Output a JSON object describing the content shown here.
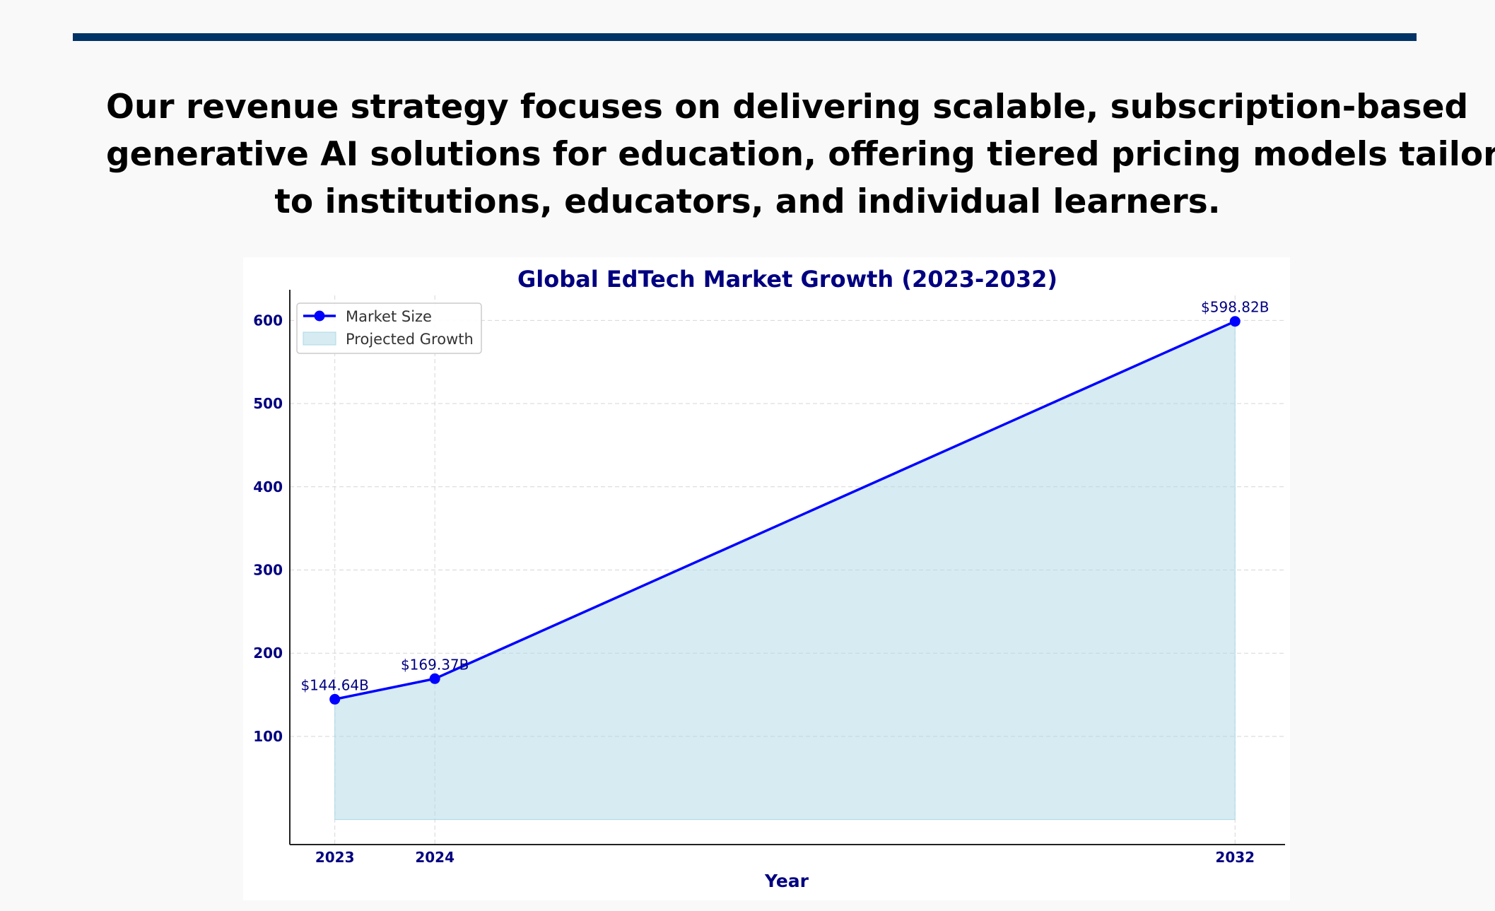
{
  "heading": {
    "line1": "Our revenue strategy focuses on delivering scalable, subscription-based",
    "line2": "generative AI solutions for education, offering tiered pricing models tailored",
    "line3": "to institutions, educators, and individual learners."
  },
  "colors": {
    "top_rule": "#003366",
    "title": "#000080",
    "series_line": "#0000ff",
    "area_fill": "#add8e6"
  },
  "chart_data": {
    "type": "line",
    "title": "Global EdTech Market Growth (2023-2032)",
    "xlabel": "Year",
    "ylabel": "",
    "x": [
      2023,
      2024,
      2032
    ],
    "x_ticks": [
      "2023",
      "2024",
      "2032"
    ],
    "y_ticks": [
      100,
      200,
      300,
      400,
      500,
      600
    ],
    "xlim": [
      2022.55,
      2032.5
    ],
    "ylim": [
      -30,
      630
    ],
    "grid": true,
    "legend_position": "top-left",
    "series": [
      {
        "name": "Market Size",
        "values": [
          144.64,
          169.37,
          598.82
        ],
        "labels": [
          "$144.64B",
          "$169.37B",
          "$598.82B"
        ],
        "marker": "circle"
      }
    ],
    "area": {
      "name": "Projected Growth",
      "baseline": 0,
      "values": [
        144.64,
        169.37,
        598.82
      ]
    }
  }
}
